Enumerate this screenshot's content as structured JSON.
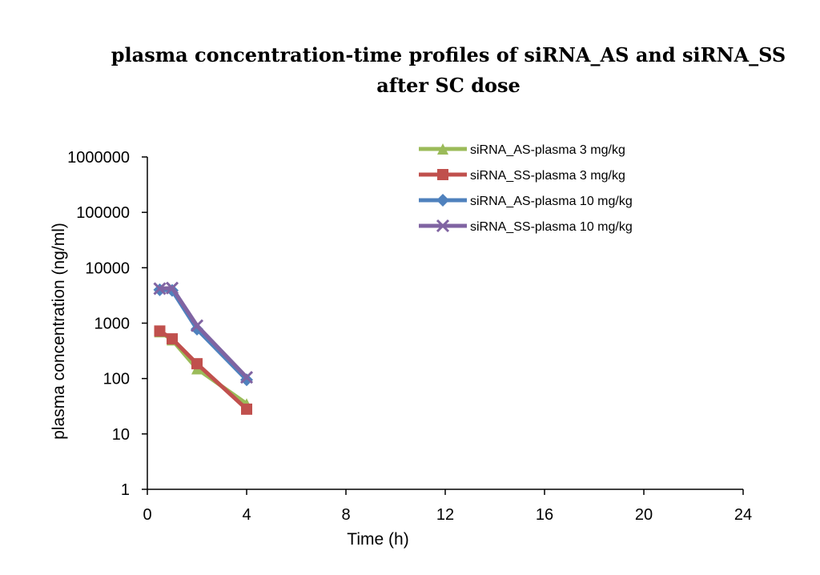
{
  "chart_data": {
    "type": "line",
    "title_line1": "plasma concentration-time profiles of siRNA_AS and siRNA_SS",
    "title_line2": "after SC dose",
    "xlabel": "Time (h)",
    "ylabel": "plasma concentration (ng/ml)",
    "xlim": [
      0,
      24
    ],
    "xticks": [
      "0",
      "4",
      "8",
      "12",
      "16",
      "20",
      "24"
    ],
    "ylim": [
      1,
      1000000
    ],
    "yscale": "log",
    "yticks": [
      "1",
      "10",
      "100",
      "1000",
      "10000",
      "100000",
      "1000000"
    ],
    "grid": false,
    "legend_position": "top-right",
    "series": [
      {
        "name": "siRNA_AS-plasma  3 mg/kg",
        "color": "#9bbb59",
        "marker": "triangle",
        "x": [
          0.5,
          1,
          2,
          4
        ],
        "y": [
          700,
          500,
          150,
          35
        ]
      },
      {
        "name": "siRNA_SS-plasma  3 mg/kg",
        "color": "#c0504d",
        "marker": "square",
        "x": [
          0.5,
          1,
          2,
          4
        ],
        "y": [
          720,
          520,
          185,
          28
        ]
      },
      {
        "name": "siRNA_AS-plasma  10 mg/kg",
        "color": "#4f81bd",
        "marker": "diamond",
        "x": [
          0.5,
          1,
          2,
          4
        ],
        "y": [
          4000,
          3900,
          780,
          95
        ]
      },
      {
        "name": "siRNA_SS-plasma  10 mg/kg",
        "color": "#8064a2",
        "marker": "x",
        "x": [
          0.5,
          1,
          2,
          4
        ],
        "y": [
          4200,
          4300,
          900,
          105
        ]
      }
    ]
  }
}
